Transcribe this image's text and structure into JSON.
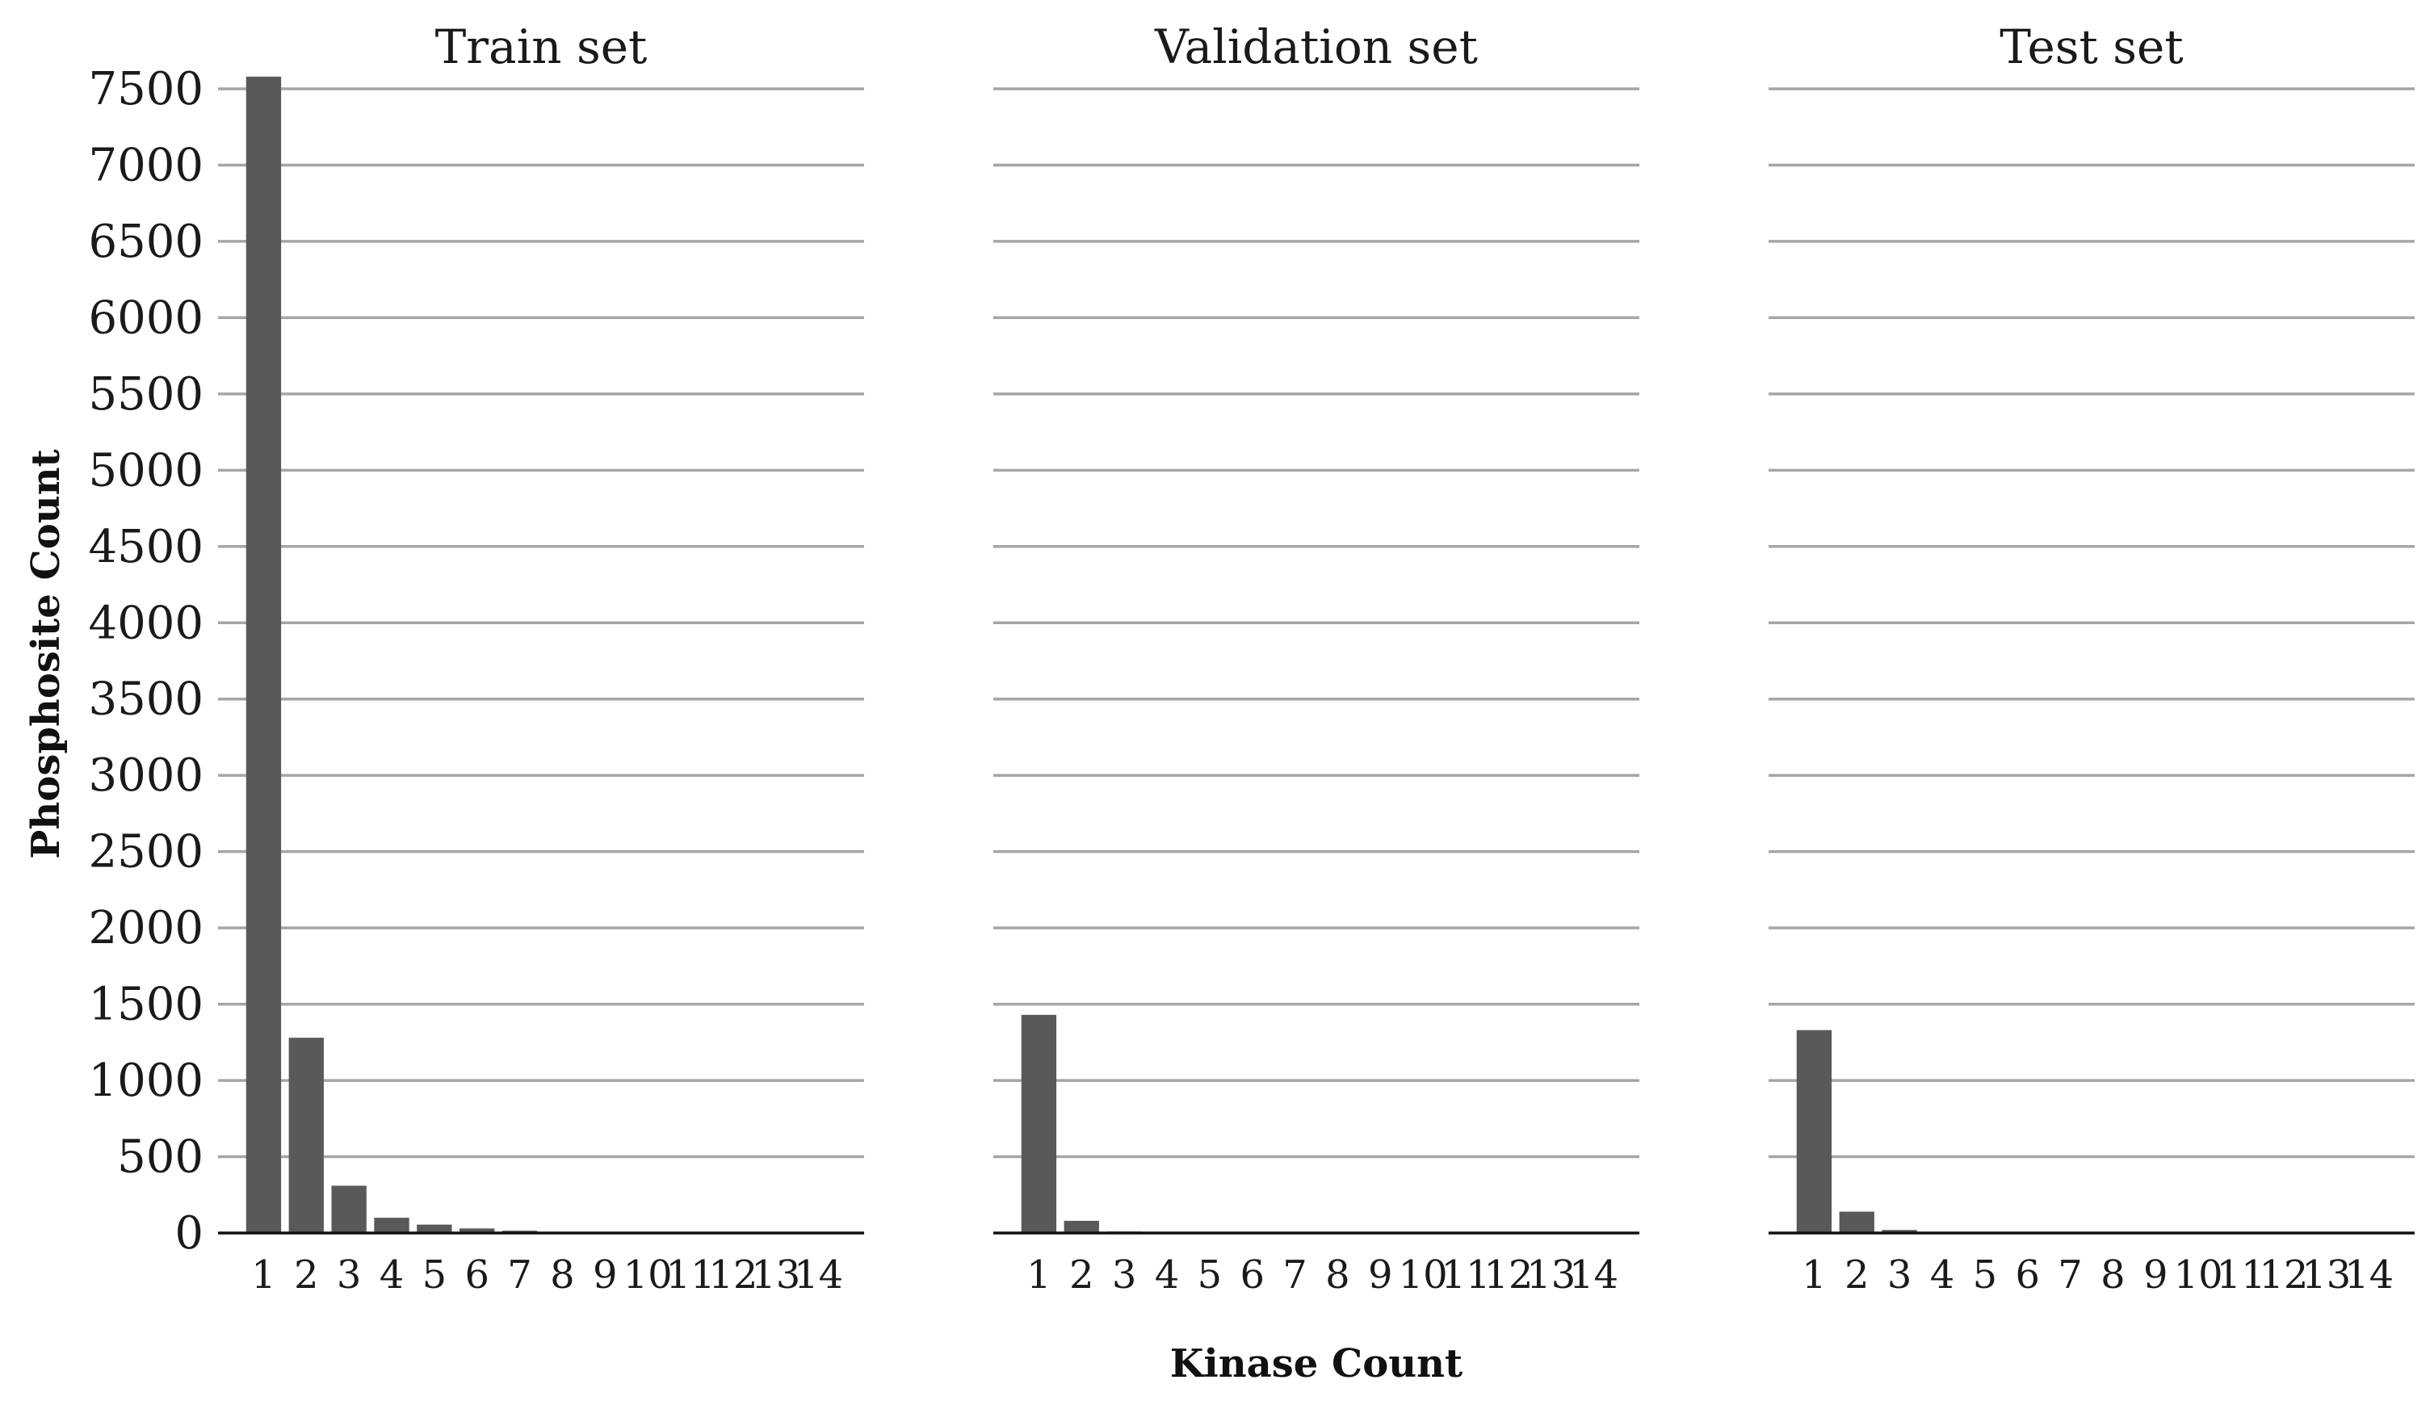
{
  "chart_data": [
    {
      "type": "bar",
      "title": "Train set",
      "categories": [
        "1",
        "2",
        "3",
        "4",
        "5",
        "6",
        "7",
        "8",
        "9",
        "10",
        "11",
        "12",
        "13",
        "14"
      ],
      "values": [
        7580,
        1280,
        310,
        100,
        55,
        30,
        15,
        6,
        4,
        3,
        2,
        1,
        1,
        1
      ],
      "ylim": [
        0,
        7500
      ],
      "yticks": [
        0,
        500,
        1000,
        1500,
        2000,
        2500,
        3000,
        3500,
        4000,
        4500,
        5000,
        5500,
        6000,
        6500,
        7000,
        7500
      ],
      "grid": true,
      "bar_color": "#595959"
    },
    {
      "type": "bar",
      "title": "Validation set",
      "categories": [
        "1",
        "2",
        "3",
        "4",
        "5",
        "6",
        "7",
        "8",
        "9",
        "10",
        "11",
        "12",
        "13",
        "14"
      ],
      "values": [
        1430,
        80,
        10,
        3,
        1,
        1,
        0,
        0,
        0,
        0,
        0,
        0,
        0,
        0
      ],
      "ylim": [
        0,
        7500
      ],
      "yticks": [
        0,
        500,
        1000,
        1500,
        2000,
        2500,
        3000,
        3500,
        4000,
        4500,
        5000,
        5500,
        6000,
        6500,
        7000,
        7500
      ],
      "grid": true,
      "bar_color": "#595959"
    },
    {
      "type": "bar",
      "title": "Test set",
      "categories": [
        "1",
        "2",
        "3",
        "4",
        "5",
        "6",
        "7",
        "8",
        "9",
        "10",
        "11",
        "12",
        "13",
        "14"
      ],
      "values": [
        1330,
        140,
        20,
        5,
        2,
        1,
        1,
        0,
        0,
        0,
        0,
        0,
        0,
        0
      ],
      "ylim": [
        0,
        7500
      ],
      "yticks": [
        0,
        500,
        1000,
        1500,
        2000,
        2500,
        3000,
        3500,
        4000,
        4500,
        5000,
        5500,
        6000,
        6500,
        7000,
        7500
      ],
      "grid": true,
      "bar_color": "#595959"
    }
  ],
  "shared_axes": {
    "xlabel": "Kinase Count",
    "ylabel": "Phosphosite Count",
    "sharey": true
  }
}
